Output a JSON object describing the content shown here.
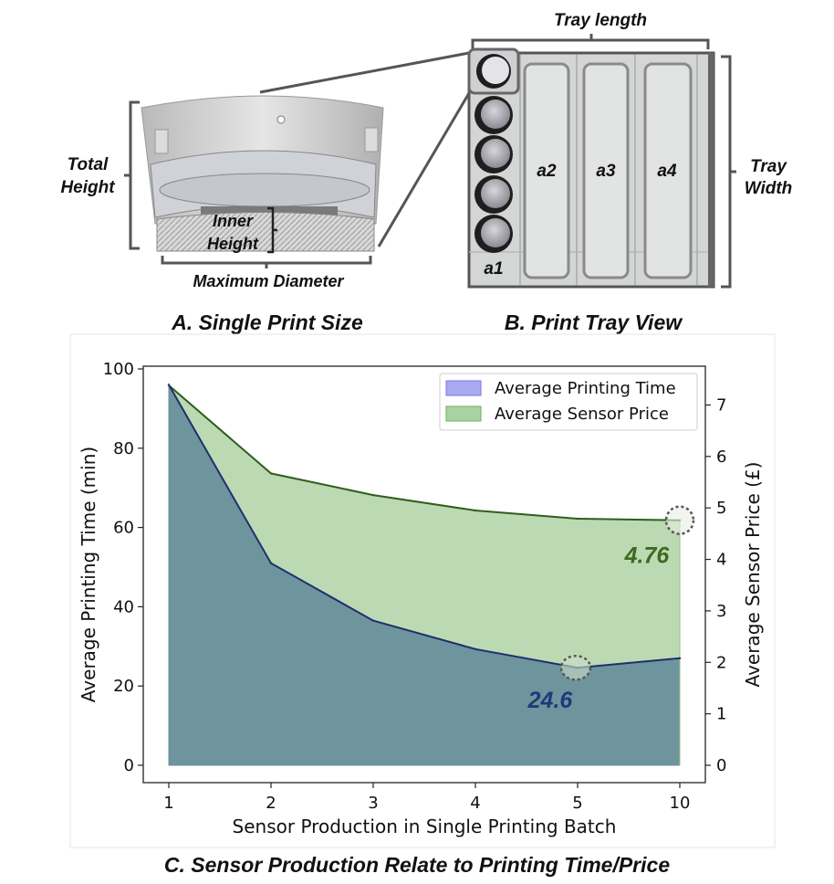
{
  "panel_a": {
    "caption": "A. Single Print Size",
    "total_height_line1": "Total",
    "total_height_line2": "Height",
    "inner_height_line1": "Inner",
    "inner_height_line2": "Height",
    "max_diameter": "Maximum Diameter"
  },
  "panel_b": {
    "caption": "B. Print Tray View",
    "tray_length": "Tray length",
    "tray_width_line1": "Tray",
    "tray_width_line2": "Width",
    "slots": [
      "a1",
      "a2",
      "a3",
      "a4"
    ]
  },
  "panel_c": {
    "caption": "C. Sensor Production Relate to Printing Time/Price"
  },
  "colors": {
    "time_fill": "#5b8299",
    "time_line": "#1f2f6b",
    "price_fill": "#b7d8b0",
    "price_line": "#2f5e1e",
    "time_annotation": "#1f3a78",
    "price_annotation": "#3d6b1f"
  },
  "chart_data": {
    "type": "area",
    "categories": [
      "1",
      "2",
      "3",
      "4",
      "5",
      "10"
    ],
    "xlabel": "Sensor Production in Single Printing Batch",
    "ylabel": "Average Printing Time (min)",
    "y2label": "Average Sensor Price (£)",
    "ylim": [
      0,
      100
    ],
    "y2lim": [
      0,
      7.7
    ],
    "yticks": [
      0,
      20,
      40,
      60,
      80,
      100
    ],
    "y2ticks": [
      0,
      1,
      2,
      3,
      4,
      5,
      6,
      7
    ],
    "grid": false,
    "legend_position": "top-right",
    "series": [
      {
        "name": "Average Printing Time",
        "axis": "left",
        "values": [
          96,
          51,
          36.5,
          29.3,
          24.6,
          27
        ]
      },
      {
        "name": "Average Sensor Price",
        "axis": "right",
        "values": [
          7.38,
          5.67,
          5.25,
          4.95,
          4.79,
          4.76
        ]
      }
    ],
    "annotations": [
      {
        "text": "24.6",
        "series": "Average Printing Time",
        "category": "5"
      },
      {
        "text": "4.76",
        "series": "Average Sensor Price",
        "category": "10"
      }
    ]
  }
}
